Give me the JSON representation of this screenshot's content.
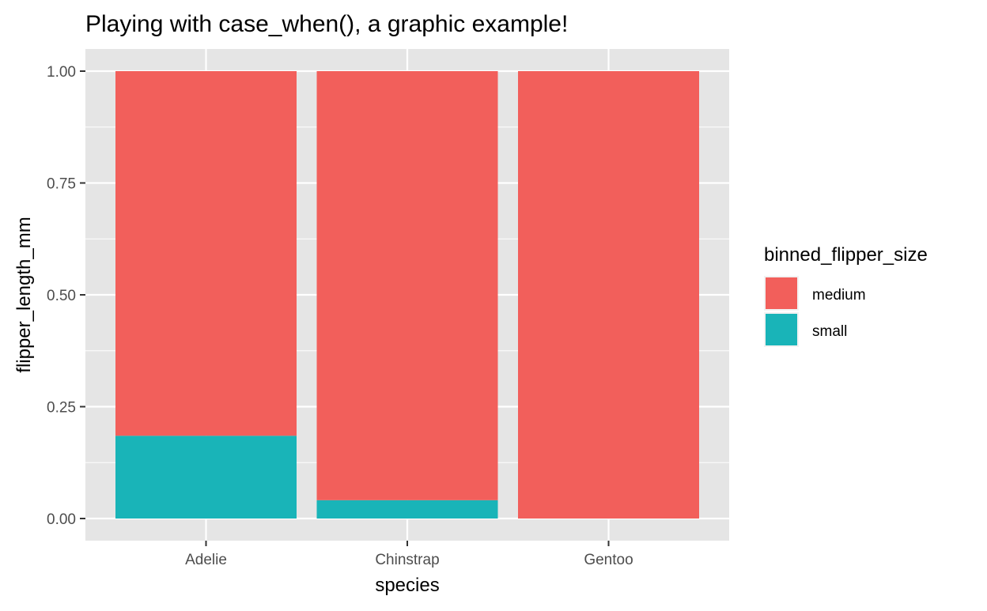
{
  "chart_data": {
    "type": "bar",
    "stacked": true,
    "position": "fill",
    "title": "Playing with case_when(), a graphic example!",
    "xlabel": "species",
    "ylabel": "flipper_length_mm",
    "categories": [
      "Adelie",
      "Chinstrap",
      "Gentoo"
    ],
    "series": [
      {
        "name": "small",
        "values": [
          0.185,
          0.041,
          0.0
        ],
        "color": "#19B4B8"
      },
      {
        "name": "medium",
        "values": [
          0.815,
          0.959,
          1.0
        ],
        "color": "#F25F5B"
      }
    ],
    "ylim": [
      0,
      1
    ],
    "yticks": [
      "0.00",
      "0.25",
      "0.50",
      "0.75",
      "1.00"
    ],
    "grid": true,
    "panel_background": "#E5E5E5",
    "legend": {
      "title": "binned_flipper_size",
      "placement": "right",
      "items": [
        {
          "label": "medium",
          "color": "#F25F5B"
        },
        {
          "label": "small",
          "color": "#19B4B8"
        }
      ]
    }
  }
}
